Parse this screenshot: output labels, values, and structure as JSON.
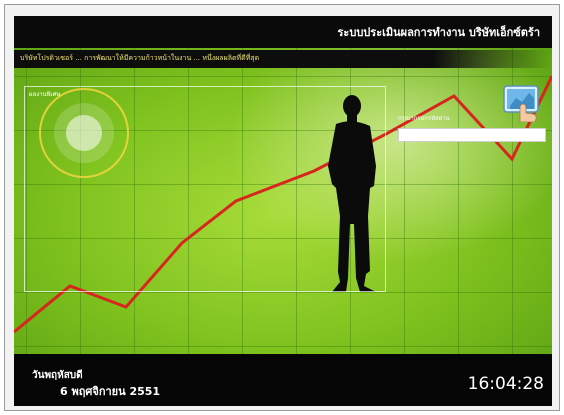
{
  "header": {
    "title": "ระบบประเมินผลการทำงาน บริษัทเอ็กซ์ตร้า"
  },
  "marquee": {
    "text": "บริษัทโปรดิวเซอร์ ... การพัฒนาให้มีความก้าวหน้าในงาน ... หนึ่งผลผลิตที่ดีที่สุด"
  },
  "content_box": {
    "label": "ผลงานพิเศษ"
  },
  "login": {
    "label": "กรุณากรอกรหัสผ่าน",
    "input_value": "",
    "input_placeholder": ""
  },
  "footer": {
    "day": "วันพฤหัสบดี",
    "date": "6 พฤศจิกายน 2551",
    "clock": "16:04:28"
  },
  "decor": {
    "line_color": "#d7261e",
    "background_color": "#8cc82a",
    "bar_color": "#0a0a0a",
    "ring_color": "#f2d640"
  },
  "icons": {
    "login_icon": "hand-touch-screen-icon",
    "silhouette": "businessman-silhouette"
  }
}
